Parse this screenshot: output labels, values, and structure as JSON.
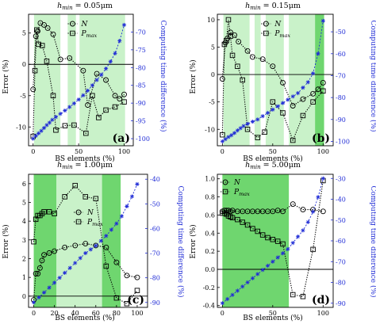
{
  "figure": {
    "xlabel": "BS elements (%)",
    "ylabel": "Error (%)",
    "ylabel_right": "Computing time difference (%)"
  },
  "colors": {
    "shade_light": "#c9f2c9",
    "shade_dark": "#6fd66f",
    "marker": "#000000",
    "time_series": "#1f2bd6"
  },
  "chart_data": [
    {
      "type": "line",
      "title": "h_min = 0.05μm",
      "panel_label": "(a)",
      "xlim": [
        -5,
        110
      ],
      "ylim": [
        -13,
        8
      ],
      "yticks": [
        -10,
        -5,
        0,
        5
      ],
      "ylim_right": [
        -102,
        -65
      ],
      "yticks_right": [
        -100,
        -95,
        -90,
        -85,
        -80,
        -75,
        -70
      ],
      "xticks": [
        0,
        50,
        100
      ],
      "legend": [
        "N",
        "P_max"
      ],
      "legend_position": "top-center",
      "shaded_bands": [
        {
          "x": [
            1,
            30
          ],
          "shade": "light"
        },
        {
          "x": [
            38,
            47
          ],
          "shade": "light"
        },
        {
          "x": [
            51,
            101
          ],
          "shade": "light"
        }
      ],
      "series": [
        {
          "name": "N",
          "marker": "circle",
          "x": [
            0,
            3,
            5,
            8,
            12,
            16,
            22,
            30,
            40,
            55,
            60,
            70,
            80,
            90,
            95,
            100
          ],
          "y": [
            -4,
            4.5,
            5.3,
            6.6,
            6.3,
            5.8,
            4.8,
            0.8,
            1,
            -1,
            -6.5,
            -1.5,
            -2.5,
            -5,
            -5.5,
            -4.8
          ]
        },
        {
          "name": "P_max",
          "marker": "square",
          "x": [
            0,
            2,
            4,
            6,
            10,
            15,
            22,
            25,
            35,
            45,
            58,
            65,
            72,
            80,
            90,
            100
          ],
          "y": [
            -11.5,
            -1,
            5.5,
            3.2,
            3,
            0.5,
            -5,
            -10.5,
            -9.8,
            -9.7,
            -11,
            -5,
            -8.5,
            -7.3,
            -6.8,
            -6
          ]
        },
        {
          "name": "",
          "marker": "star",
          "axis": "right",
          "x": [
            0,
            3,
            6,
            9,
            12,
            15,
            18,
            21,
            25,
            30,
            35,
            40,
            45,
            50,
            55,
            60,
            65,
            70,
            75,
            80,
            85,
            90,
            95,
            100
          ],
          "y": [
            -100,
            -99.2,
            -98.5,
            -97.8,
            -97,
            -96.2,
            -95.5,
            -94.7,
            -93.9,
            -93,
            -92.1,
            -91.1,
            -90.1,
            -89,
            -87.8,
            -86.5,
            -85,
            -83.5,
            -82,
            -80.3,
            -78.3,
            -76,
            -72.5,
            -68
          ]
        }
      ]
    },
    {
      "type": "line",
      "title": "h_min = 0.15μm",
      "panel_label": "(b)",
      "xlim": [
        -5,
        110
      ],
      "ylim": [
        -13,
        11
      ],
      "yticks": [
        -10,
        -5,
        0,
        5,
        10
      ],
      "ylim_right": [
        -102,
        -42
      ],
      "yticks_right": [
        -100,
        -90,
        -80,
        -70,
        -60,
        -50
      ],
      "xticks": [
        0,
        50,
        100
      ],
      "legend": [
        "N",
        "P_max"
      ],
      "legend_position": "top-center",
      "shaded_bands": [
        {
          "x": [
            1,
            27
          ],
          "shade": "light"
        },
        {
          "x": [
            32,
            38
          ],
          "shade": "light"
        },
        {
          "x": [
            43,
            61
          ],
          "shade": "light"
        },
        {
          "x": [
            66,
            92
          ],
          "shade": "light"
        },
        {
          "x": [
            92,
            101
          ],
          "shade": "dark"
        }
      ],
      "series": [
        {
          "name": "N",
          "marker": "circle",
          "x": [
            0,
            3,
            5,
            8,
            12,
            16,
            25,
            30,
            40,
            50,
            60,
            70,
            80,
            90,
            95,
            100
          ],
          "y": [
            -0.8,
            5.8,
            6.6,
            7.7,
            7.2,
            6,
            4.3,
            3.2,
            2.8,
            1.5,
            -1.5,
            -5.7,
            -4.5,
            -3.5,
            -2.7,
            -1.5
          ]
        },
        {
          "name": "P_max",
          "marker": "square",
          "x": [
            0,
            2,
            4,
            6,
            8,
            10,
            15,
            20,
            25,
            35,
            42,
            50,
            60,
            70,
            80,
            90,
            100
          ],
          "y": [
            -11,
            5.5,
            6.2,
            10,
            7,
            3.5,
            1.5,
            -1,
            -10,
            -11.5,
            -10.5,
            -5,
            -7,
            -12,
            -7.5,
            -5,
            -3
          ]
        },
        {
          "name": "",
          "marker": "star",
          "axis": "right",
          "x": [
            0,
            3,
            6,
            9,
            12,
            15,
            18,
            21,
            25,
            30,
            35,
            40,
            45,
            50,
            55,
            60,
            65,
            70,
            75,
            80,
            85,
            90,
            95,
            100
          ],
          "y": [
            -100,
            -99,
            -98,
            -97.2,
            -96.2,
            -95,
            -94,
            -93,
            -92,
            -91,
            -90,
            -88.5,
            -87,
            -85.5,
            -84,
            -82.5,
            -81,
            -79.5,
            -78,
            -75.5,
            -73,
            -69,
            -60,
            -45
          ]
        }
      ]
    },
    {
      "type": "line",
      "title": "h_min = 1.00μm",
      "panel_label": "(c)",
      "xlim": [
        -5,
        110
      ],
      "ylim": [
        -0.6,
        6.5
      ],
      "yticks": [
        0,
        1,
        2,
        3,
        4,
        5,
        6
      ],
      "ylim_right": [
        -92,
        -38
      ],
      "yticks_right": [
        -90,
        -80,
        -70,
        -60,
        -50,
        -40
      ],
      "xticks": [
        0,
        20,
        40,
        60,
        80,
        100
      ],
      "legend": [
        "N",
        "P_max"
      ],
      "legend_position": "center",
      "shaded_bands": [
        {
          "x": [
            0,
            22
          ],
          "shade": "dark"
        },
        {
          "x": [
            22,
            66
          ],
          "shade": "light"
        },
        {
          "x": [
            66,
            84
          ],
          "shade": "dark"
        }
      ],
      "series": [
        {
          "name": "N",
          "marker": "circle",
          "x": [
            0,
            2,
            4,
            6,
            8,
            10,
            15,
            20,
            30,
            40,
            50,
            60,
            70,
            80,
            90,
            100
          ],
          "y": [
            -0.2,
            1.2,
            1.2,
            1.5,
            1.9,
            2.2,
            2.3,
            2.4,
            2.6,
            2.7,
            2.8,
            2.7,
            2.6,
            1.8,
            1.1,
            1.0
          ]
        },
        {
          "name": "P_max",
          "marker": "square",
          "x": [
            0,
            2,
            4,
            6,
            8,
            10,
            15,
            20,
            30,
            40,
            50,
            60,
            70,
            80,
            90,
            100
          ],
          "y": [
            2.9,
            4.1,
            4.3,
            4.3,
            4.4,
            4.5,
            4.5,
            4.4,
            5.3,
            5.9,
            5.3,
            5.2,
            1.6,
            -0.1,
            -0.4,
            0.3
          ]
        },
        {
          "name": "",
          "marker": "star",
          "axis": "right",
          "x": [
            0,
            5,
            10,
            15,
            20,
            25,
            30,
            35,
            40,
            45,
            50,
            55,
            60,
            65,
            70,
            75,
            80,
            85,
            90,
            95,
            100
          ],
          "y": [
            -90,
            -88,
            -86,
            -84,
            -82,
            -80,
            -78,
            -76,
            -74,
            -72,
            -70,
            -68.5,
            -67,
            -65,
            -63,
            -60.5,
            -58,
            -55,
            -51,
            -47,
            -42
          ]
        }
      ]
    },
    {
      "type": "line",
      "title": "h_min = 5.00μm",
      "panel_label": "(d)",
      "xlim": [
        -5,
        110
      ],
      "ylim": [
        -0.42,
        1.05
      ],
      "yticks": [
        -0.4,
        -0.2,
        0.0,
        0.2,
        0.4,
        0.6,
        0.8,
        1.0
      ],
      "ylim_right": [
        -92,
        -28
      ],
      "yticks_right": [
        -90,
        -80,
        -70,
        -60,
        -50,
        -40,
        -30
      ],
      "xticks": [
        0,
        50,
        100
      ],
      "legend": [
        "N",
        "P_max"
      ],
      "legend_position": "top-left",
      "shaded_bands": [
        {
          "x": [
            0,
            66
          ],
          "shade": "dark"
        }
      ],
      "series": [
        {
          "name": "N",
          "marker": "circle",
          "x": [
            0,
            2,
            4,
            6,
            8,
            10,
            15,
            20,
            25,
            30,
            35,
            40,
            45,
            50,
            55,
            60,
            70,
            80,
            90,
            100
          ],
          "y": [
            0.64,
            0.65,
            0.65,
            0.65,
            0.64,
            0.65,
            0.64,
            0.64,
            0.64,
            0.64,
            0.64,
            0.64,
            0.64,
            0.64,
            0.65,
            0.64,
            0.72,
            0.66,
            0.66,
            0.64
          ]
        },
        {
          "name": "P_max",
          "marker": "square",
          "x": [
            0,
            2,
            4,
            6,
            8,
            10,
            15,
            20,
            25,
            30,
            35,
            40,
            45,
            50,
            55,
            60,
            70,
            80,
            90,
            100
          ],
          "y": [
            0.62,
            0.62,
            0.61,
            0.59,
            0.58,
            0.57,
            0.55,
            0.52,
            0.49,
            0.45,
            0.42,
            0.38,
            0.35,
            0.33,
            0.31,
            0.28,
            -0.28,
            -0.3,
            0.22,
            0.98
          ]
        },
        {
          "name": "",
          "marker": "star",
          "axis": "right",
          "x": [
            0,
            5,
            10,
            15,
            20,
            25,
            30,
            35,
            40,
            45,
            50,
            55,
            60,
            65,
            70,
            75,
            80,
            85,
            90,
            95,
            100
          ],
          "y": [
            -90,
            -88,
            -86,
            -84,
            -82,
            -80,
            -78,
            -76,
            -74,
            -72,
            -70,
            -68,
            -66,
            -64,
            -61,
            -58,
            -55,
            -51,
            -46,
            -39,
            -30
          ]
        }
      ]
    }
  ]
}
